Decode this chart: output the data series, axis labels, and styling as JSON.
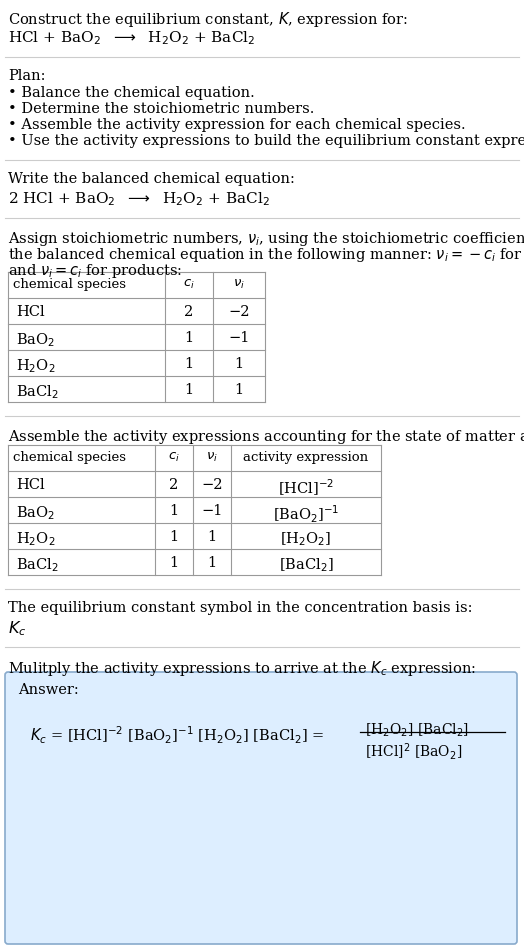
{
  "title_line1": "Construct the equilibrium constant, $K$, expression for:",
  "title_line2": "HCl + BaO$_2$  $\\longrightarrow$  H$_2$O$_2$ + BaCl$_2$",
  "plan_header": "Plan:",
  "plan_items": [
    "• Balance the chemical equation.",
    "• Determine the stoichiometric numbers.",
    "• Assemble the activity expression for each chemical species.",
    "• Use the activity expressions to build the equilibrium constant expression."
  ],
  "balanced_header": "Write the balanced chemical equation:",
  "balanced_eq": "2 HCl + BaO$_2$  $\\longrightarrow$  H$_2$O$_2$ + BaCl$_2$",
  "stoich_line1": "Assign stoichiometric numbers, $\\nu_i$, using the stoichiometric coefficients, $c_i$, from",
  "stoich_line2": "the balanced chemical equation in the following manner: $\\nu_i = -c_i$ for reactants",
  "stoich_line3": "and $\\nu_i = c_i$ for products:",
  "table1_headers": [
    "chemical species",
    "$c_i$",
    "$\\nu_i$"
  ],
  "table1_data": [
    [
      "HCl",
      "2",
      "−2"
    ],
    [
      "BaO$_2$",
      "1",
      "−1"
    ],
    [
      "H$_2$O$_2$",
      "1",
      "1"
    ],
    [
      "BaCl$_2$",
      "1",
      "1"
    ]
  ],
  "assemble_header": "Assemble the activity expressions accounting for the state of matter and $\\nu_i$:",
  "table2_headers": [
    "chemical species",
    "$c_i$",
    "$\\nu_i$",
    "activity expression"
  ],
  "table2_data": [
    [
      "HCl",
      "2",
      "−2",
      "[HCl]$^{-2}$"
    ],
    [
      "BaO$_2$",
      "1",
      "−1",
      "[BaO$_2$]$^{-1}$"
    ],
    [
      "H$_2$O$_2$",
      "1",
      "1",
      "[H$_2$O$_2$]"
    ],
    [
      "BaCl$_2$",
      "1",
      "1",
      "[BaCl$_2$]"
    ]
  ],
  "kc_symbol_header": "The equilibrium constant symbol in the concentration basis is:",
  "kc_symbol": "$K_c$",
  "multiply_header": "Mulitply the activity expressions to arrive at the $K_c$ expression:",
  "answer_label": "Answer:",
  "bg_color": "#ffffff",
  "table_border_color": "#999999",
  "answer_box_bg": "#ddeeff",
  "answer_box_border": "#88aacc",
  "font_size": 10.5,
  "small_font_size": 9.5
}
